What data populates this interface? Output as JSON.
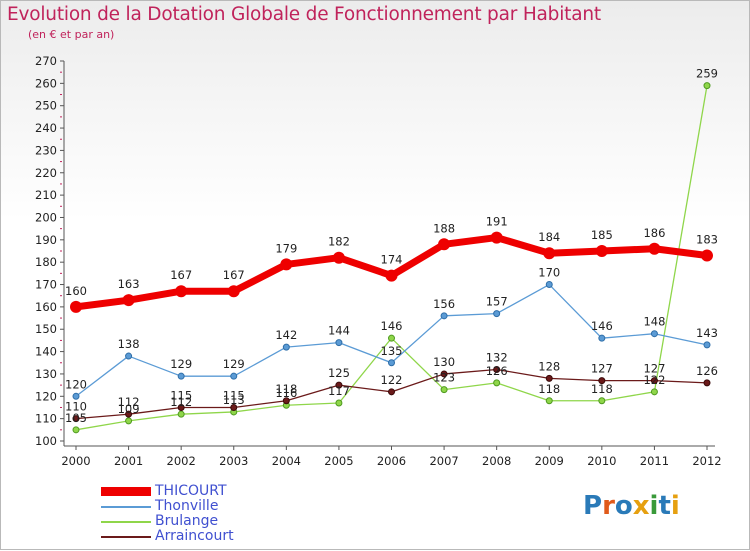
{
  "header": {
    "title": "Evolution de la Dotation Globale de Fonctionnement par Habitant",
    "subtitle": "(en € et par an)"
  },
  "logo": {
    "text": "Proxiti",
    "colors": [
      "#2a7ab8",
      "#e05a1a",
      "#2a7ab8",
      "#e6a010",
      "#3a9a3a",
      "#2a7ab8",
      "#e6a010"
    ]
  },
  "chart_data": {
    "type": "line",
    "categories": [
      "2000",
      "2001",
      "2002",
      "2003",
      "2004",
      "2005",
      "2006",
      "2007",
      "2008",
      "2009",
      "2010",
      "2011",
      "2012"
    ],
    "ylim": [
      100,
      270
    ],
    "yticks": [
      100,
      110,
      120,
      130,
      140,
      150,
      160,
      170,
      180,
      190,
      200,
      210,
      220,
      230,
      240,
      250,
      260,
      270
    ],
    "grid": false,
    "legend_position": "bottom-left",
    "series": [
      {
        "name": "THICOURT",
        "color": "#ee0000",
        "values": [
          160,
          163,
          167,
          167,
          179,
          182,
          174,
          188,
          191,
          184,
          185,
          186,
          183
        ]
      },
      {
        "name": "Thonville",
        "color": "#5b9bd5",
        "values": [
          120,
          138,
          129,
          129,
          142,
          144,
          135,
          156,
          157,
          170,
          146,
          148,
          143
        ]
      },
      {
        "name": "Brulange",
        "color": "#8fd64a",
        "values": [
          105,
          109,
          112,
          113,
          116,
          117,
          146,
          123,
          126,
          118,
          118,
          122,
          259
        ]
      },
      {
        "name": "Arraincourt",
        "color": "#6b1a1a",
        "values": [
          110,
          112,
          115,
          115,
          118,
          125,
          122,
          130,
          132,
          128,
          127,
          127,
          126
        ]
      }
    ]
  }
}
